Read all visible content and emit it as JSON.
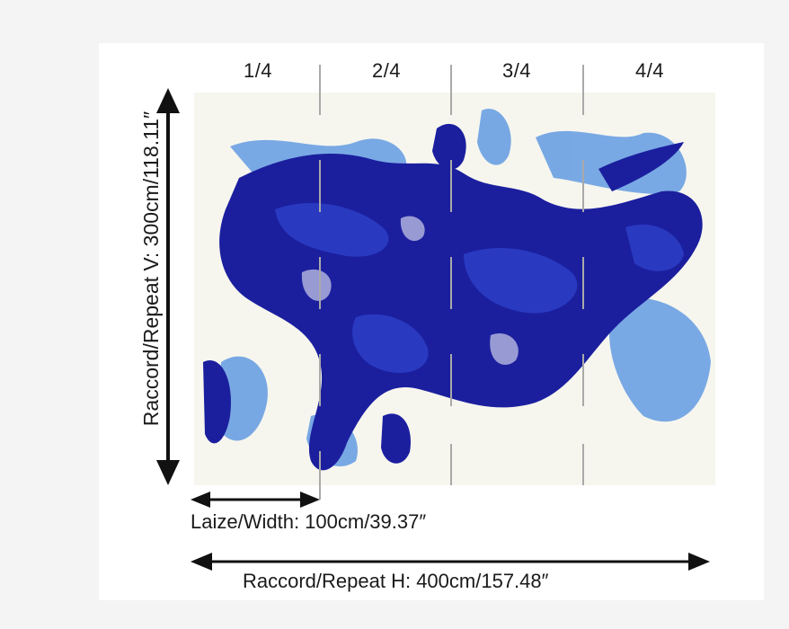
{
  "panels": [
    "1/4",
    "2/4",
    "3/4",
    "4/4"
  ],
  "labels": {
    "repeat_v": "Raccord/Repeat V: 300cm/118.11″",
    "width": "Laize/Width: 100cm/39.37″",
    "repeat_h": "Raccord/Repeat H: 400cm/157.48″"
  },
  "colors": {
    "paint_dark": "#1b1f9e",
    "paint_mid": "#2b3dc4",
    "paint_light": "#4f8fe0",
    "paper": "#f6f6ef"
  }
}
